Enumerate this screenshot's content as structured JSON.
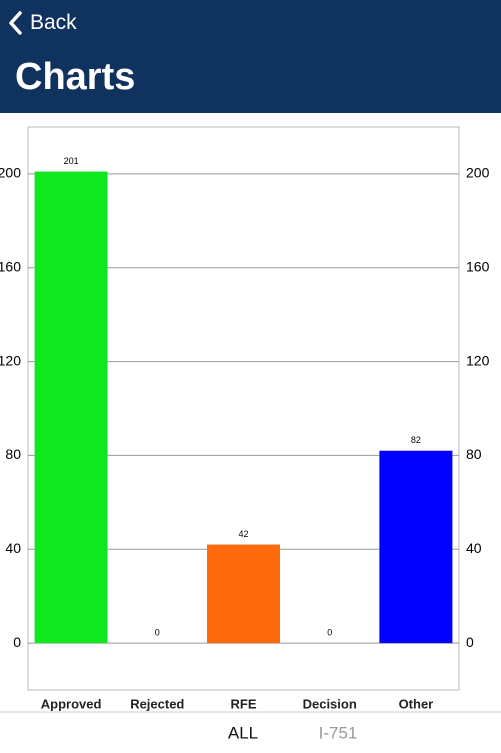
{
  "header": {
    "back_label": "Back",
    "title": "Charts"
  },
  "chart_data": {
    "type": "bar",
    "categories": [
      "Approved",
      "Rejected",
      "RFE",
      "Decision",
      "Other"
    ],
    "values": [
      201,
      0,
      42,
      0,
      82
    ],
    "colors": [
      "#0fe81f",
      "#0fe81f",
      "#ff6a0f",
      "#0000ff",
      "#0000ff"
    ],
    "ylim": [
      -20,
      220
    ],
    "yticks": [
      0,
      40,
      80,
      120,
      160,
      200
    ],
    "grid": true
  },
  "tabs": [
    "ALL",
    "I-751"
  ]
}
